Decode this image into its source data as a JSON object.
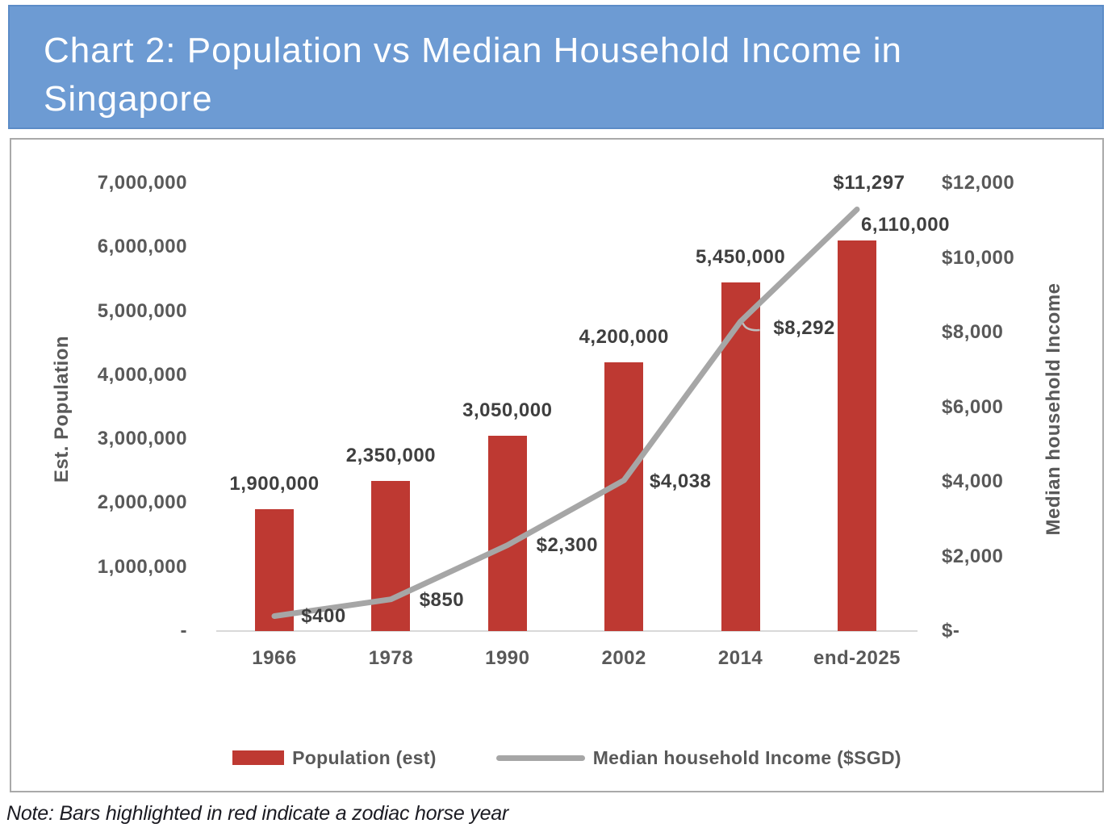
{
  "page": {
    "title_lines": [
      "Chart 2: Population vs Median Household Income in",
      "Singapore"
    ],
    "note": "Note: Bars highlighted in red indicate a zodiac horse year"
  },
  "colors": {
    "banner_bg": "#6D9BD3",
    "banner_border": "#5C8CC7",
    "bar": "#BE3932",
    "line": "#A6A6A6",
    "tick_text": "#595959",
    "data_label_text": "#3F3F3F",
    "axis_line": "#D9D9D9",
    "chart_box_border": "#A9A9A9"
  },
  "chart_data": {
    "type": "combo_bar_line",
    "categories": [
      "1966",
      "1978",
      "1990",
      "2002",
      "2014",
      "end-2025"
    ],
    "series": [
      {
        "name": "Population (est)",
        "type": "bar",
        "axis": "left",
        "color": "#BE3932",
        "values": [
          1900000,
          2350000,
          3050000,
          4200000,
          5450000,
          6110000
        ],
        "labels": [
          "1,900,000",
          "2,350,000",
          "3,050,000",
          "4,200,000",
          "5,450,000",
          "6,110,000"
        ]
      },
      {
        "name": "Median household Income ($SGD)",
        "type": "line",
        "axis": "right",
        "color": "#A6A6A6",
        "values": [
          400,
          850,
          2300,
          4038,
          8292,
          11297
        ],
        "labels": [
          "$400",
          "$850",
          "$2,300",
          "$4,038",
          "$8,292",
          "$11,297"
        ]
      }
    ],
    "left_axis": {
      "title": "Est. Population",
      "min": 0,
      "max": 7000000,
      "ticks": [
        "7,000,000",
        "6,000,000",
        "5,000,000",
        "4,000,000",
        "3,000,000",
        "2,000,000",
        "1,000,000",
        "-"
      ]
    },
    "right_axis": {
      "title": "Median household Income",
      "min": 0,
      "max": 12000,
      "ticks": [
        "$12,000",
        "$10,000",
        "$8,000",
        "$6,000",
        "$4,000",
        "$2,000",
        "$-"
      ]
    },
    "legend_position": "bottom",
    "gridlines": false
  }
}
